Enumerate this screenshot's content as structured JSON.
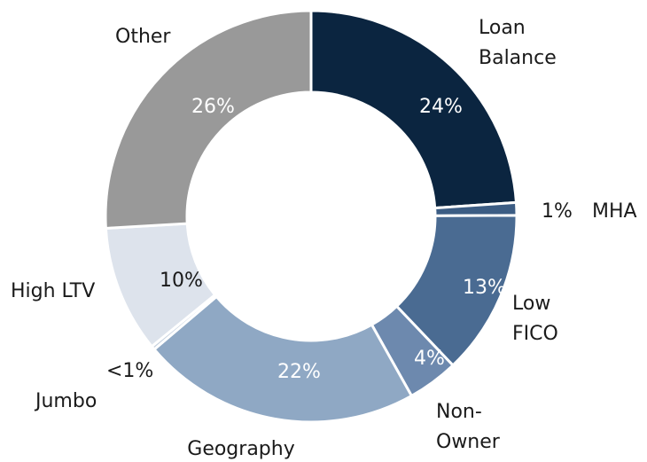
{
  "chart_data": {
    "type": "donut",
    "categories": [
      "Loan Balance",
      "MHA",
      "Low FICO",
      "Non-Owner",
      "Geography",
      "Jumbo",
      "High LTV",
      "Other"
    ],
    "values": [
      24,
      1,
      13,
      4,
      22,
      0.3,
      10,
      26
    ],
    "value_labels": [
      "24%",
      "1%",
      "13%",
      "4%",
      "22%",
      "<1%",
      "10%",
      "26%"
    ],
    "colors": [
      "#0b2540",
      "#3c5d84",
      "#4a6b92",
      "#6d89ae",
      "#8fa8c4",
      "#c5d0de",
      "#dde3ec",
      "#999999"
    ]
  }
}
